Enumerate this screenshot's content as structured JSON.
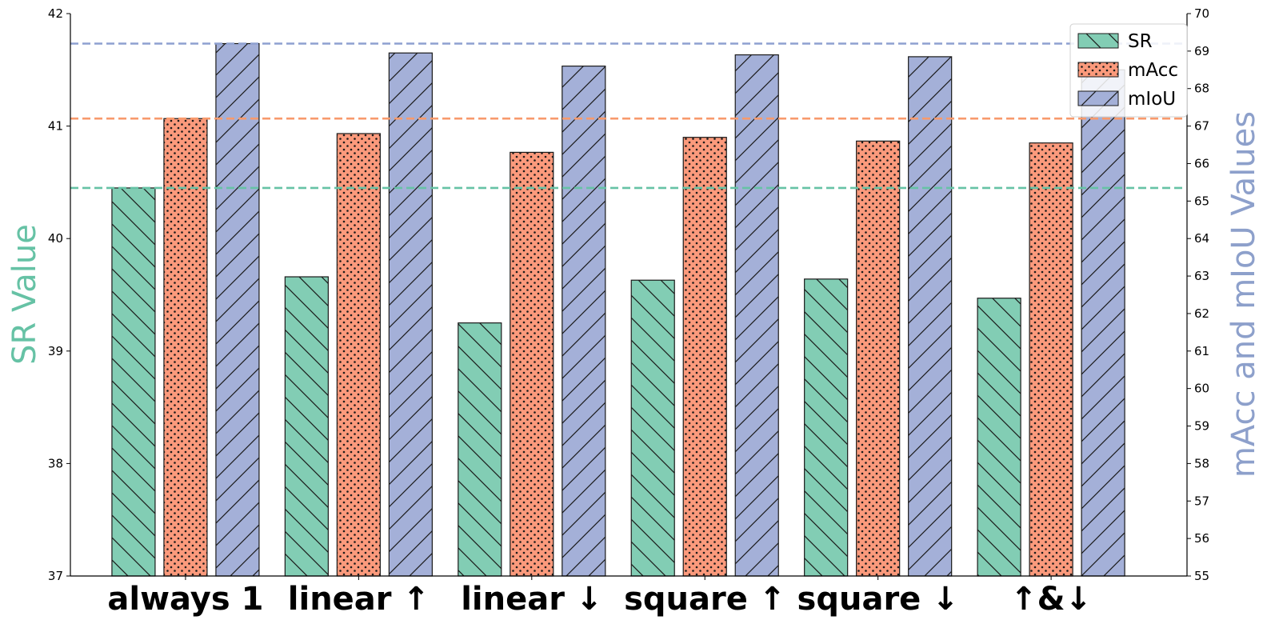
{
  "chart_data": {
    "type": "bar",
    "categories": [
      "always 1",
      "linear ↑",
      "linear ↓",
      "square ↑",
      "square ↓",
      "↑&↓"
    ],
    "series": [
      {
        "name": "SR",
        "axis": "left",
        "color": "#82cdb4",
        "hatch": "backslash",
        "values": [
          40.45,
          39.66,
          39.25,
          39.63,
          39.64,
          39.47
        ]
      },
      {
        "name": "mAcc",
        "axis": "right",
        "color": "#fb9a7c",
        "hatch": "dots",
        "values": [
          67.2,
          66.8,
          66.3,
          66.7,
          66.6,
          66.55
        ]
      },
      {
        "name": "mIoU",
        "axis": "right",
        "color": "#a4b0d8",
        "hatch": "slash",
        "values": [
          69.2,
          68.95,
          68.6,
          68.9,
          68.85,
          68.5
        ]
      }
    ],
    "reference_lines": [
      {
        "axis": "right",
        "value": 69.2,
        "color": "#8ea0d0"
      },
      {
        "axis": "right",
        "value": 67.2,
        "color": "#f89a6c"
      },
      {
        "axis": "left",
        "value": 40.45,
        "color": "#66c2a5"
      }
    ],
    "ylabel": "SR Value",
    "ylabel_right": "mAcc and mIoU Values",
    "ylabel_color": "#66c2a5",
    "ylabel_right_color": "#8da0cb",
    "ylim": [
      37,
      42
    ],
    "ylim_right": [
      55,
      70
    ],
    "yticks": [
      37,
      38,
      39,
      40,
      41,
      42
    ],
    "yticks_right": [
      55,
      56,
      57,
      58,
      59,
      60,
      61,
      62,
      63,
      64,
      65,
      66,
      67,
      68,
      69,
      70
    ],
    "grid": false,
    "legend_position": "top-right"
  }
}
